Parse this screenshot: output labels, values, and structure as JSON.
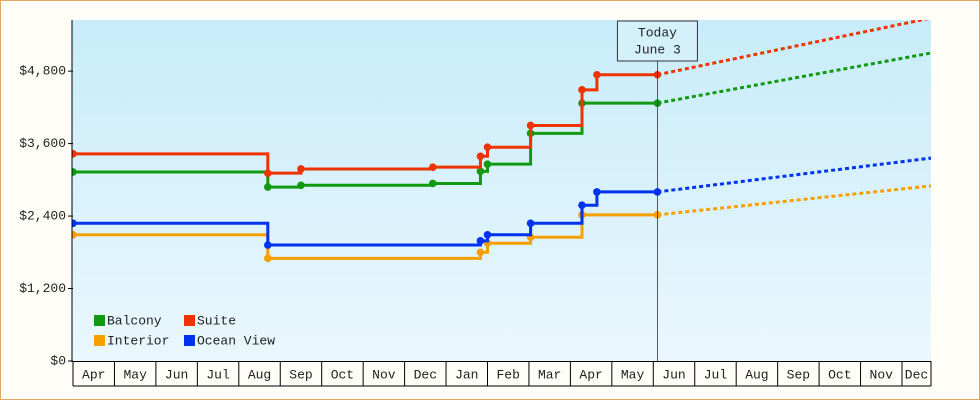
{
  "chart_data": {
    "type": "step-line",
    "categories": [
      "Apr",
      "May",
      "Jun",
      "Jul",
      "Aug",
      "Sep",
      "Oct",
      "Nov",
      "Dec",
      "Jan",
      "Feb",
      "Mar",
      "Apr",
      "May",
      "Jun",
      "Jul",
      "Aug",
      "Sep",
      "Oct",
      "Nov",
      "Dec"
    ],
    "xlim": [
      0,
      20.7
    ],
    "ylim": [
      0,
      5630
    ],
    "yticks": [
      {
        "value": 0,
        "label": "$0"
      },
      {
        "value": 1200,
        "label": "$1,200"
      },
      {
        "value": 2400,
        "label": "$2,400"
      },
      {
        "value": 3600,
        "label": "$3,600"
      },
      {
        "value": 4800,
        "label": "$4,800"
      }
    ],
    "legend": "lower left",
    "annotation": {
      "lines": [
        "Today",
        "June 3"
      ],
      "x": 14.1
    },
    "series": [
      {
        "name": "Balcony",
        "color": "#119911",
        "x": [
          0,
          4.7,
          5.5,
          8.68,
          9.83,
          10.0,
          11.04,
          12.28,
          14.1
        ],
        "values": [
          3130,
          2880,
          2910,
          2940,
          3140,
          3260,
          3770,
          4270,
          4270
        ],
        "forecast": {
          "x": [
            14.1,
            20.7
          ],
          "values": [
            4270,
            5100
          ]
        }
      },
      {
        "name": "Suite",
        "color": "#ee3300",
        "x": [
          0,
          4.7,
          5.5,
          8.68,
          9.83,
          10.0,
          11.04,
          12.28,
          12.64,
          14.1
        ],
        "values": [
          3430,
          3110,
          3180,
          3210,
          3390,
          3540,
          3900,
          4490,
          4740,
          4740
        ],
        "forecast": {
          "x": [
            14.1,
            20.7
          ],
          "values": [
            4740,
            5680
          ]
        }
      },
      {
        "name": "Interior",
        "color": "#f5a000",
        "x": [
          0,
          4.7,
          9.83,
          10.0,
          11.04,
          12.28,
          14.1
        ],
        "values": [
          2090,
          1700,
          1800,
          1950,
          2050,
          2420,
          2420
        ],
        "forecast": {
          "x": [
            14.1,
            20.7
          ],
          "values": [
            2420,
            2900
          ]
        }
      },
      {
        "name": "Ocean View",
        "color": "#0033ee",
        "x": [
          0,
          4.7,
          9.83,
          10.0,
          11.04,
          12.28,
          12.64,
          14.1
        ],
        "values": [
          2280,
          1920,
          1990,
          2090,
          2280,
          2580,
          2800,
          2800
        ],
        "forecast": {
          "x": [
            14.1,
            20.7
          ],
          "values": [
            2800,
            3360
          ]
        }
      }
    ]
  }
}
